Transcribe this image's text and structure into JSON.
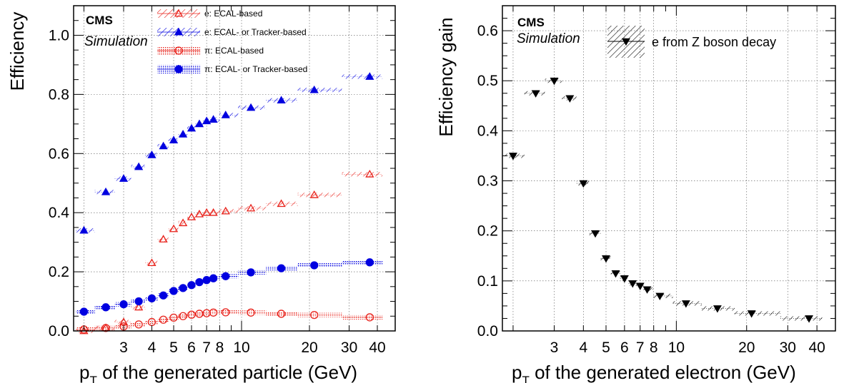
{
  "chart_data": [
    {
      "type": "scatter",
      "title": "",
      "cms_label": "CMS",
      "sim_label": "Simulation",
      "xlabel_main": "p",
      "xlabel_sub": "T",
      "xlabel_rest": " of the generated particle (GeV)",
      "ylabel": "Efficiency",
      "x_scale": "log",
      "xlim": [
        1.8,
        48
      ],
      "ylim": [
        0,
        1.1
      ],
      "x_tick_labels": [
        "3",
        "4",
        "5",
        "6",
        "7",
        "8",
        "10",
        "20",
        "30",
        "40"
      ],
      "y_tick_labels": [
        "0.0",
        "0.2",
        "0.4",
        "0.6",
        "0.8",
        "1.0"
      ],
      "legend_position": "top-center",
      "series": [
        {
          "name": "e: ECAL-based",
          "marker": "open-triangle",
          "color": "#e8211a",
          "x": [
            2.0,
            2.5,
            3.0,
            3.5,
            4.0,
            4.5,
            5.0,
            5.5,
            6.0,
            6.5,
            7.0,
            7.5,
            8.5,
            11,
            15,
            21,
            37
          ],
          "y": [
            0.0,
            0.01,
            0.03,
            0.08,
            0.23,
            0.31,
            0.345,
            0.365,
            0.385,
            0.395,
            0.4,
            0.4,
            0.405,
            0.415,
            0.43,
            0.46,
            0.53
          ]
        },
        {
          "name": "e: ECAL- or Tracker-based",
          "marker": "filled-triangle",
          "color": "#0000e0",
          "x": [
            2.0,
            2.5,
            3.0,
            3.5,
            4.0,
            4.5,
            5.0,
            5.5,
            6.0,
            6.5,
            7.0,
            7.5,
            8.5,
            11,
            15,
            21,
            37
          ],
          "y": [
            0.34,
            0.47,
            0.515,
            0.555,
            0.595,
            0.625,
            0.645,
            0.665,
            0.685,
            0.7,
            0.71,
            0.715,
            0.73,
            0.755,
            0.78,
            0.815,
            0.86
          ]
        },
        {
          "name": "π: ECAL-based",
          "marker": "open-circle",
          "color": "#e8211a",
          "x": [
            2.0,
            2.5,
            3.0,
            3.5,
            4.0,
            4.5,
            5.0,
            5.5,
            6.0,
            6.5,
            7.0,
            7.5,
            8.5,
            11,
            15,
            21,
            37
          ],
          "y": [
            0.005,
            0.01,
            0.015,
            0.022,
            0.03,
            0.038,
            0.045,
            0.05,
            0.055,
            0.058,
            0.06,
            0.062,
            0.063,
            0.062,
            0.058,
            0.054,
            0.046
          ]
        },
        {
          "name": "π: ECAL- or Tracker-based",
          "marker": "filled-circle",
          "color": "#0000e0",
          "x": [
            2.0,
            2.5,
            3.0,
            3.5,
            4.0,
            4.5,
            5.0,
            5.5,
            6.0,
            6.5,
            7.0,
            7.5,
            8.5,
            11,
            15,
            21,
            37
          ],
          "y": [
            0.065,
            0.08,
            0.09,
            0.1,
            0.11,
            0.12,
            0.135,
            0.145,
            0.155,
            0.165,
            0.172,
            0.178,
            0.185,
            0.198,
            0.212,
            0.222,
            0.232
          ]
        }
      ]
    },
    {
      "type": "scatter",
      "title": "",
      "cms_label": "CMS",
      "sim_label": "Simulation",
      "xlabel_main": "p",
      "xlabel_sub": "T",
      "xlabel_rest": " of the generated electron (GeV)",
      "ylabel": "Efficiency gain",
      "x_scale": "log",
      "xlim": [
        1.8,
        48
      ],
      "ylim": [
        0,
        0.65
      ],
      "x_tick_labels": [
        "3",
        "4",
        "5",
        "6",
        "7",
        "8",
        "10",
        "20",
        "30",
        "40"
      ],
      "y_tick_labels": [
        "0.0",
        "0.1",
        "0.2",
        "0.3",
        "0.4",
        "0.5",
        "0.6"
      ],
      "legend_position": "top-center",
      "series": [
        {
          "name": "e from Z boson decay",
          "marker": "filled-down-triangle",
          "color": "#000000",
          "x": [
            2.0,
            2.5,
            3.0,
            3.5,
            4.0,
            4.5,
            5.0,
            5.5,
            6.0,
            6.5,
            7.0,
            7.5,
            8.5,
            11,
            15,
            21,
            37
          ],
          "y": [
            0.35,
            0.475,
            0.5,
            0.465,
            0.295,
            0.195,
            0.145,
            0.115,
            0.105,
            0.095,
            0.09,
            0.083,
            0.07,
            0.055,
            0.045,
            0.035,
            0.025
          ]
        }
      ]
    }
  ]
}
